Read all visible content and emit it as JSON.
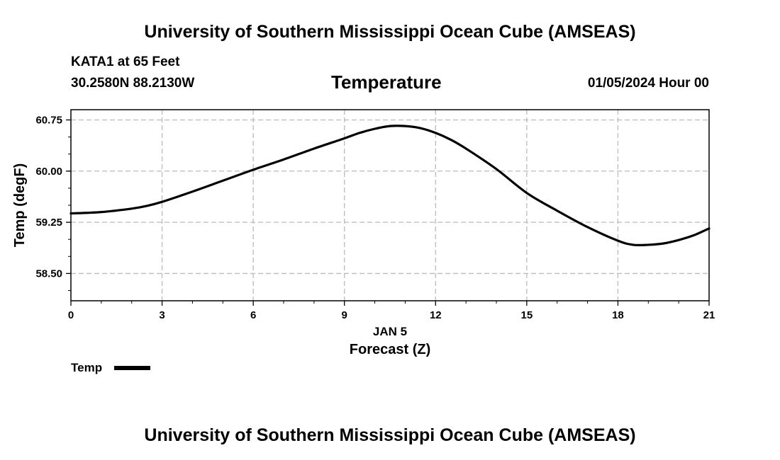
{
  "header": {
    "title": "University of Southern Mississippi Ocean Cube (AMSEAS)",
    "station": "KATA1 at 65 Feet",
    "coords": "30.2580N  88.2130W",
    "date": "01/05/2024 Hour 00"
  },
  "footer": {
    "title": "University of Southern Mississippi Ocean Cube (AMSEAS)"
  },
  "chart_data": {
    "type": "line",
    "title": "Temperature",
    "xlabel": "Forecast (Z)",
    "xsublabel": "JAN 5",
    "ylabel": "Temp (degF)",
    "xlim": [
      0,
      21
    ],
    "ylim": [
      58.1,
      60.9
    ],
    "xticks": [
      0,
      3,
      6,
      9,
      12,
      15,
      18,
      21
    ],
    "xtick_labels": [
      "0",
      "3",
      "6",
      "9",
      "12",
      "15",
      "18",
      "21"
    ],
    "yticks": [
      58.5,
      59.25,
      60.0,
      60.75
    ],
    "ytick_labels": [
      "58.50",
      "59.25",
      "60.00",
      "60.75"
    ],
    "grid": true,
    "legend": {
      "placement": "bottom-left",
      "entries": [
        "Temp"
      ]
    },
    "series": [
      {
        "name": "Temp",
        "color": "#000000",
        "x": [
          0,
          1,
          2,
          2.5,
          3,
          4,
          5,
          6,
          7,
          8,
          9,
          9.5,
          10,
          10.5,
          11,
          11.5,
          12,
          12.5,
          13,
          14,
          15,
          16,
          17,
          18,
          18.5,
          19,
          19.5,
          20,
          20.5,
          21
        ],
        "y": [
          59.38,
          59.4,
          59.45,
          59.49,
          59.55,
          59.7,
          59.86,
          60.02,
          60.17,
          60.33,
          60.48,
          60.56,
          60.62,
          60.66,
          60.66,
          60.63,
          60.56,
          60.46,
          60.33,
          60.03,
          59.68,
          59.42,
          59.18,
          58.98,
          58.92,
          58.92,
          58.94,
          58.99,
          59.06,
          59.16
        ]
      }
    ]
  }
}
